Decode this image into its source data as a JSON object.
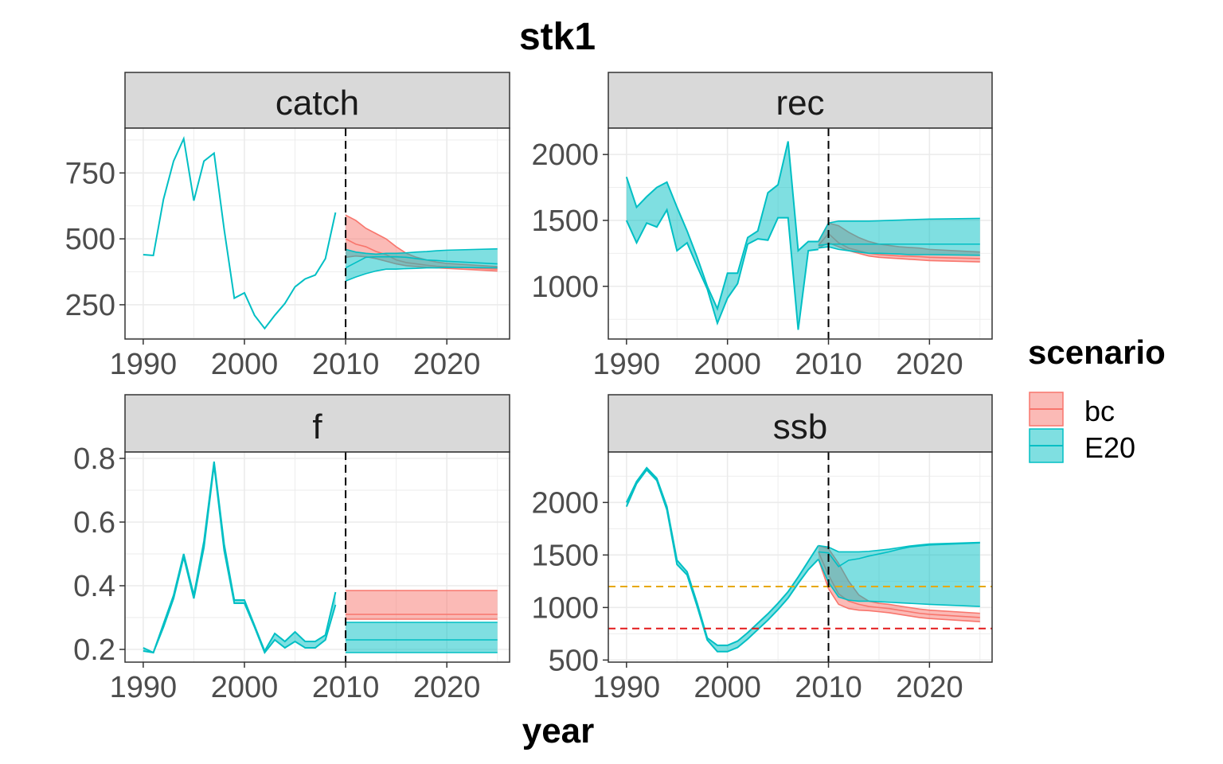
{
  "figure": {
    "title": "stk1",
    "xlabel": "year",
    "legend": {
      "title": "scenario",
      "position": "right",
      "entries": [
        {
          "name": "bc",
          "color": "#F8766D"
        },
        {
          "name": "E20",
          "color": "#00BFC4"
        }
      ]
    }
  },
  "chart_data": [
    {
      "type": "area",
      "panel": "catch",
      "title": "catch",
      "xlim": [
        1988.2,
        2026.2
      ],
      "ylim": [
        120,
        920
      ],
      "xticks": [
        1990,
        2000,
        2010,
        2020
      ],
      "yticks": [
        250,
        500,
        750
      ],
      "grid": true,
      "vline": 2010,
      "hlines": [],
      "history": {
        "x": [
          1990,
          1991,
          1992,
          1993,
          1994,
          1995,
          1996,
          1997,
          1998,
          1999,
          2000,
          2001,
          2002,
          2003,
          2004,
          2005,
          2006,
          2007,
          2008,
          2009
        ],
        "y": [
          440,
          437,
          650,
          795,
          880,
          645,
          795,
          825,
          535,
          275,
          295,
          210,
          160,
          210,
          255,
          318,
          348,
          363,
          425,
          600
        ]
      },
      "series": [
        {
          "name": "bc",
          "x": [
            2010,
            2011,
            2012,
            2013,
            2014,
            2015,
            2016,
            2017,
            2018,
            2019,
            2020,
            2025
          ],
          "mid": [
            500,
            480,
            470,
            452,
            440,
            420,
            410,
            405,
            400,
            396,
            394,
            385
          ],
          "lower": [
            430,
            435,
            432,
            425,
            415,
            405,
            398,
            395,
            392,
            390,
            388,
            378
          ],
          "upper": [
            590,
            570,
            540,
            520,
            500,
            470,
            445,
            430,
            420,
            412,
            407,
            395
          ]
        },
        {
          "name": "E20",
          "x": [
            2010,
            2011,
            2012,
            2013,
            2014,
            2015,
            2016,
            2017,
            2018,
            2019,
            2020,
            2025
          ],
          "mid": [
            390,
            410,
            430,
            432,
            432,
            432,
            430,
            425,
            420,
            418,
            415,
            405
          ],
          "lower": [
            340,
            355,
            368,
            378,
            385,
            385,
            387,
            388,
            390,
            390,
            392,
            390
          ],
          "upper": [
            460,
            450,
            445,
            442,
            445,
            445,
            447,
            450,
            452,
            455,
            457,
            462
          ]
        }
      ]
    },
    {
      "type": "area",
      "panel": "rec",
      "title": "rec",
      "xlim": [
        1988.2,
        2026.2
      ],
      "ylim": [
        600,
        2200
      ],
      "xticks": [
        1990,
        2000,
        2010,
        2020
      ],
      "yticks": [
        1000,
        1500,
        2000
      ],
      "grid": true,
      "vline": 2010,
      "hlines": [],
      "history": {
        "x": [
          1990,
          1991,
          1992,
          1993,
          1994,
          1995,
          1996,
          1997,
          1998,
          1999,
          2000,
          2001,
          2002,
          2003,
          2004,
          2005,
          2006,
          2007,
          2008,
          2009
        ],
        "lower": [
          1500,
          1330,
          1480,
          1450,
          1580,
          1270,
          1330,
          1150,
          980,
          720,
          910,
          1020,
          1320,
          1360,
          1350,
          1520,
          1520,
          670,
          1270,
          1280
        ],
        "upper": [
          1830,
          1600,
          1680,
          1750,
          1790,
          1600,
          1420,
          1220,
          1000,
          830,
          1100,
          1100,
          1370,
          1420,
          1710,
          1770,
          2100,
          1270,
          1340,
          1340
        ]
      },
      "series": [
        {
          "name": "bc",
          "x": [
            2009,
            2010,
            2011,
            2012,
            2013,
            2014,
            2015,
            2016,
            2017,
            2018,
            2019,
            2020,
            2025
          ],
          "mid": [
            1310,
            1400,
            1330,
            1290,
            1270,
            1250,
            1240,
            1235,
            1230,
            1228,
            1225,
            1220,
            1210
          ],
          "lower": [
            1290,
            1330,
            1300,
            1270,
            1250,
            1230,
            1220,
            1215,
            1210,
            1205,
            1200,
            1195,
            1185
          ],
          "upper": [
            1340,
            1480,
            1460,
            1410,
            1370,
            1340,
            1320,
            1310,
            1300,
            1295,
            1290,
            1280,
            1260
          ]
        },
        {
          "name": "E20",
          "x": [
            2009,
            2010,
            2011,
            2012,
            2013,
            2014,
            2015,
            2016,
            2017,
            2018,
            2019,
            2020,
            2025
          ],
          "mid": [
            1310,
            1320,
            1320,
            1320,
            1320,
            1320,
            1320,
            1320,
            1320,
            1320,
            1320,
            1320,
            1320
          ],
          "lower": [
            1290,
            1300,
            1280,
            1270,
            1260,
            1250,
            1250,
            1248,
            1245,
            1240,
            1240,
            1240,
            1235
          ],
          "upper": [
            1340,
            1480,
            1495,
            1495,
            1495,
            1495,
            1497,
            1500,
            1502,
            1505,
            1508,
            1510,
            1515
          ]
        }
      ]
    },
    {
      "type": "area",
      "panel": "f",
      "title": "f",
      "xlim": [
        1988.2,
        2026.2
      ],
      "ylim": [
        0.16,
        0.82
      ],
      "xticks": [
        1990,
        2000,
        2010,
        2020
      ],
      "yticks": [
        0.2,
        0.4,
        0.6,
        0.8
      ],
      "grid": true,
      "vline": 2010,
      "hlines": [],
      "history": {
        "x": [
          1990,
          1991,
          1992,
          1993,
          1994,
          1995,
          1996,
          1997,
          1998,
          1999,
          2000,
          2001,
          2002,
          2003,
          2004,
          2005,
          2006,
          2007,
          2008,
          2009
        ],
        "lower": [
          0.195,
          0.19,
          0.27,
          0.36,
          0.49,
          0.36,
          0.52,
          0.78,
          0.51,
          0.345,
          0.345,
          0.27,
          0.19,
          0.23,
          0.205,
          0.225,
          0.205,
          0.205,
          0.23,
          0.34
        ],
        "upper": [
          0.205,
          0.19,
          0.28,
          0.37,
          0.5,
          0.37,
          0.54,
          0.79,
          0.53,
          0.355,
          0.355,
          0.275,
          0.195,
          0.25,
          0.225,
          0.255,
          0.225,
          0.225,
          0.245,
          0.38
        ]
      },
      "series": [
        {
          "name": "bc",
          "x": [
            2010,
            2025
          ],
          "mid": [
            0.31,
            0.31
          ],
          "lower": [
            0.295,
            0.295
          ],
          "upper": [
            0.385,
            0.385
          ]
        },
        {
          "name": "E20",
          "x": [
            2010,
            2025
          ],
          "mid": [
            0.23,
            0.23
          ],
          "lower": [
            0.19,
            0.19
          ],
          "upper": [
            0.285,
            0.285
          ]
        }
      ]
    },
    {
      "type": "area",
      "panel": "ssb",
      "title": "ssb",
      "xlim": [
        1988.2,
        2026.2
      ],
      "ylim": [
        480,
        2480
      ],
      "xticks": [
        1990,
        2000,
        2010,
        2020
      ],
      "yticks": [
        500,
        1000,
        1500,
        2000
      ],
      "grid": true,
      "vline": 2010,
      "hlines": [
        {
          "y": 1200,
          "color": "#E6A800"
        },
        {
          "y": 800,
          "color": "#E31A1C"
        }
      ],
      "history": {
        "x": [
          1990,
          1991,
          1992,
          1993,
          1994,
          1995,
          1996,
          1997,
          1998,
          1999,
          2000,
          2001,
          2002,
          2003,
          2004,
          2005,
          2006,
          2007,
          2008,
          2009
        ],
        "lower": [
          1960,
          2180,
          2310,
          2210,
          1930,
          1410,
          1310,
          1010,
          690,
          580,
          580,
          620,
          700,
          790,
          880,
          980,
          1090,
          1230,
          1360,
          1460
        ],
        "upper": [
          2000,
          2200,
          2330,
          2230,
          1960,
          1450,
          1340,
          1040,
          710,
          640,
          640,
          680,
          760,
          850,
          940,
          1040,
          1150,
          1290,
          1440,
          1590
        ]
      },
      "series": [
        {
          "name": "bc",
          "x": [
            2009,
            2010,
            2011,
            2012,
            2013,
            2014,
            2015,
            2016,
            2017,
            2018,
            2019,
            2020,
            2025
          ],
          "mid": [
            1530,
            1310,
            1130,
            1060,
            1030,
            1010,
            1000,
            990,
            975,
            960,
            945,
            935,
            905
          ],
          "lower": [
            1460,
            1180,
            1030,
            990,
            975,
            970,
            960,
            950,
            935,
            920,
            905,
            895,
            865
          ],
          "upper": [
            1590,
            1560,
            1420,
            1250,
            1120,
            1060,
            1040,
            1030,
            1015,
            1000,
            985,
            975,
            945
          ]
        },
        {
          "name": "E20",
          "x": [
            2009,
            2010,
            2011,
            2012,
            2013,
            2014,
            2015,
            2016,
            2017,
            2018,
            2019,
            2020,
            2025
          ],
          "mid": [
            1530,
            1520,
            1390,
            1450,
            1465,
            1490,
            1510,
            1530,
            1555,
            1575,
            1585,
            1595,
            1615
          ],
          "lower": [
            1460,
            1240,
            1100,
            1070,
            1060,
            1060,
            1055,
            1050,
            1045,
            1040,
            1035,
            1030,
            1010
          ],
          "upper": [
            1590,
            1575,
            1530,
            1530,
            1530,
            1535,
            1545,
            1555,
            1570,
            1585,
            1595,
            1605,
            1620
          ]
        }
      ]
    }
  ]
}
